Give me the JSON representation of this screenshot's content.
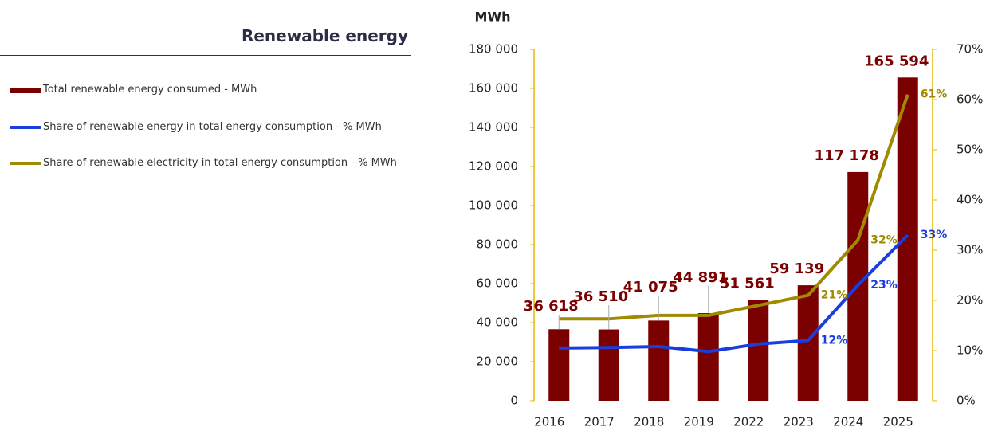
{
  "chart_data": {
    "type": "bar",
    "title": "Renewable energy",
    "ylabel": "MWh",
    "categories": [
      "2016",
      "2017",
      "2018",
      "2019",
      "2022",
      "2023",
      "2024",
      "2025"
    ],
    "series": [
      {
        "name": "Total renewable energy consumed - MWh",
        "type": "bar",
        "color": "#7b0000",
        "values": [
          36618,
          36510,
          41075,
          44891,
          51561,
          59139,
          117178,
          165594
        ],
        "value_labels": [
          "36 618",
          "36 510",
          "41 075",
          "44 891",
          "51 561",
          "59 139",
          "117 178",
          "165 594"
        ]
      },
      {
        "name": "Share of renewable energy in total energy consumption - % MWh",
        "type": "line",
        "axis": "y2",
        "color": "#1a3de0",
        "values": [
          10.5,
          10.6,
          10.8,
          9.8,
          11.3,
          12,
          23,
          33
        ],
        "value_labels": [
          null,
          null,
          null,
          null,
          null,
          "12%",
          "23%",
          "33%"
        ]
      },
      {
        "name": "Share of renewable electricity in total energy consumption - % MWh",
        "type": "line",
        "axis": "y2",
        "color": "#a08a00",
        "values": [
          16.3,
          16.3,
          17,
          17,
          19,
          21,
          32,
          61
        ],
        "value_labels": [
          null,
          null,
          null,
          null,
          null,
          "21%",
          "32%",
          "61%"
        ]
      }
    ],
    "ylim": [
      0,
      180000
    ],
    "yticks": [
      0,
      {
        "value": 20000,
        "label": "20 000"
      },
      {
        "value": 40000,
        "label": "40 000"
      },
      {
        "value": 60000,
        "label": "60 000"
      },
      {
        "value": 80000,
        "label": "80 000"
      },
      {
        "value": 100000,
        "label": "100 000"
      },
      {
        "value": 120000,
        "label": "120 000"
      },
      {
        "value": 140000,
        "label": "140 000"
      },
      {
        "value": 160000,
        "label": "160 000"
      },
      {
        "value": 180000,
        "label": "180 000"
      }
    ],
    "y2lim": [
      0,
      70
    ],
    "y2ticks": [
      {
        "value": 0,
        "label": "0%"
      },
      {
        "value": 10,
        "label": "10%"
      },
      {
        "value": 20,
        "label": "20%"
      },
      {
        "value": 30,
        "label": "30%"
      },
      {
        "value": 40,
        "label": "40%"
      },
      {
        "value": 50,
        "label": "50%"
      },
      {
        "value": 60,
        "label": "60%"
      },
      {
        "value": 70,
        "label": "70%"
      }
    ],
    "grid": false
  }
}
